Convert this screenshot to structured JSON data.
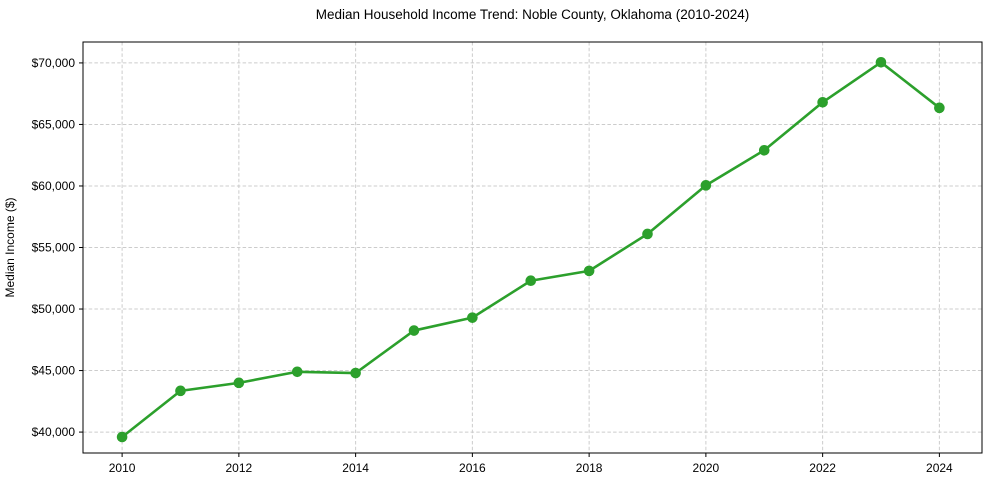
{
  "chart_data": {
    "type": "line",
    "title": "Median Household Income Trend: Noble County, Oklahoma (2010-2024)",
    "xlabel": "",
    "ylabel": "Median Income ($)",
    "x": [
      2010,
      2011,
      2012,
      2013,
      2014,
      2015,
      2016,
      2017,
      2018,
      2019,
      2020,
      2021,
      2022,
      2023,
      2024
    ],
    "values": [
      39600,
      43350,
      44000,
      44900,
      44800,
      48250,
      49300,
      52300,
      53100,
      56100,
      60050,
      62900,
      66800,
      70050,
      66350
    ],
    "series_name": "Median Household Income",
    "xlim": [
      2009.33,
      2024.73
    ],
    "ylim": [
      38300,
      71700
    ],
    "xticks": [
      2010,
      2012,
      2014,
      2016,
      2018,
      2020,
      2022,
      2024
    ],
    "xtick_labels": [
      "2010",
      "2012",
      "2014",
      "2016",
      "2018",
      "2020",
      "2022",
      "2024"
    ],
    "yticks": [
      40000,
      45000,
      50000,
      55000,
      60000,
      65000,
      70000
    ],
    "ytick_labels": [
      "$40,000",
      "$45,000",
      "$50,000",
      "$55,000",
      "$60,000",
      "$65,000",
      "$70,000"
    ],
    "grid": "dashed",
    "grid_color": "#cccccc",
    "line_color": "#2ca02c",
    "marker": "circle",
    "legend": "none",
    "spine_color": "#000000"
  }
}
